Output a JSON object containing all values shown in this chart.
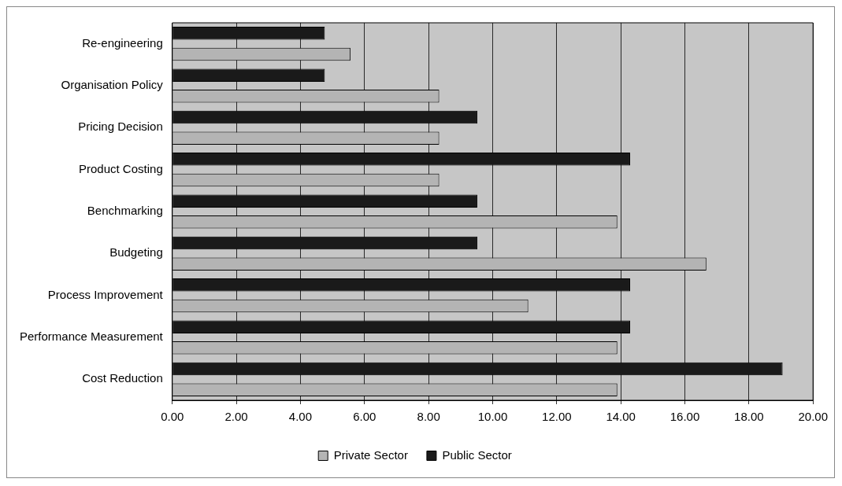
{
  "chart_data": {
    "type": "bar",
    "orientation": "horizontal",
    "categories": [
      "Re-engineering",
      "Organisation Policy",
      "Pricing Decision",
      "Product Costing",
      "Benchmarking",
      "Budgeting",
      "Process Improvement",
      "Performance Measurement",
      "Cost Reduction"
    ],
    "series": [
      {
        "name": "Private Sector",
        "color": "#b4b4b4",
        "values": [
          5.56,
          8.33,
          8.33,
          8.33,
          13.89,
          16.67,
          11.11,
          13.89,
          13.89
        ]
      },
      {
        "name": "Public Sector",
        "color": "#1a1a1a",
        "values": [
          4.76,
          4.76,
          9.52,
          14.29,
          9.52,
          9.52,
          14.29,
          14.29,
          19.05
        ]
      }
    ],
    "xlim": [
      0,
      20
    ],
    "xticks": [
      {
        "value": 0,
        "label": "0.00"
      },
      {
        "value": 2,
        "label": "2.00"
      },
      {
        "value": 4,
        "label": "4.00"
      },
      {
        "value": 6,
        "label": "6.00"
      },
      {
        "value": 8,
        "label": "8.00"
      },
      {
        "value": 10,
        "label": "10.00"
      },
      {
        "value": 12,
        "label": "12.00"
      },
      {
        "value": 14,
        "label": "14.00"
      },
      {
        "value": 16,
        "label": "16.00"
      },
      {
        "value": 18,
        "label": "18.00"
      },
      {
        "value": 20,
        "label": "20.00"
      }
    ],
    "grid": "x",
    "legend": "bottom"
  }
}
